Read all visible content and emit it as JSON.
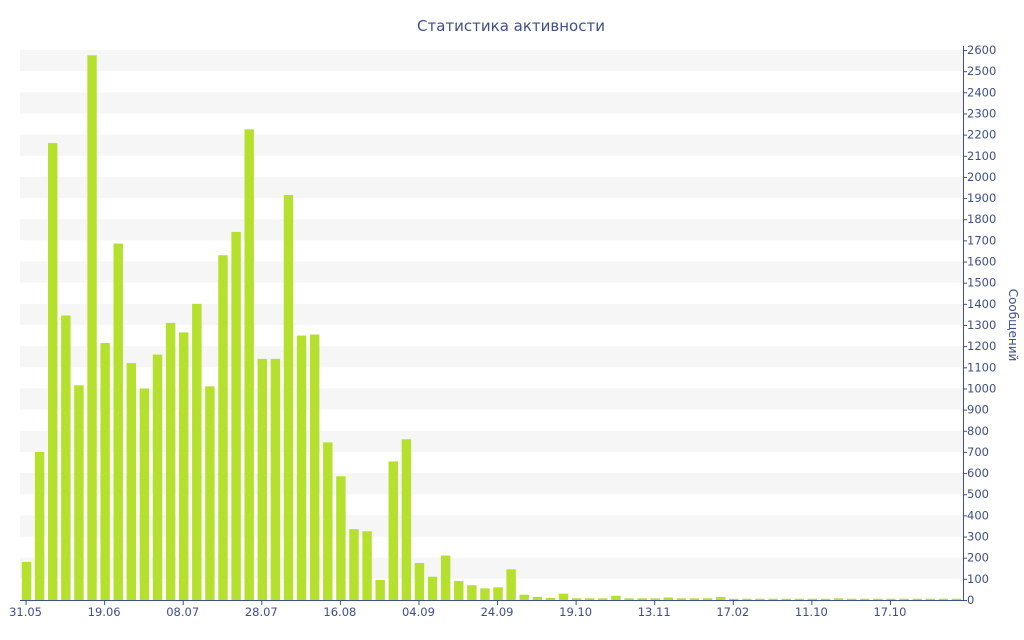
{
  "chart_data": {
    "type": "bar",
    "title": "Статистика активности",
    "xlabel": "",
    "ylabel": "Сообщений",
    "ylim": [
      0,
      2600
    ],
    "ytick_step": 100,
    "y_axis_position": "right",
    "grid": "alternating horizontal bands",
    "bar_color": "#b5e02e",
    "text_color": "#3e4f8a",
    "x_tick_labels": [
      {
        "index": 0,
        "label": "31.05"
      },
      {
        "index": 6,
        "label": "19.06"
      },
      {
        "index": 12,
        "label": "08.07"
      },
      {
        "index": 18,
        "label": "28.07"
      },
      {
        "index": 24,
        "label": "16.08"
      },
      {
        "index": 30,
        "label": "04.09"
      },
      {
        "index": 36,
        "label": "24.09"
      },
      {
        "index": 42,
        "label": "19.10"
      },
      {
        "index": 48,
        "label": "13.11"
      },
      {
        "index": 54,
        "label": "17.02"
      },
      {
        "index": 60,
        "label": "11.10"
      },
      {
        "index": 66,
        "label": "17.10"
      }
    ],
    "values": [
      180,
      700,
      2160,
      1345,
      1015,
      2575,
      1215,
      1685,
      1120,
      1000,
      1160,
      1310,
      1265,
      1400,
      1010,
      1630,
      1740,
      2225,
      1140,
      1140,
      1915,
      1250,
      1255,
      745,
      585,
      335,
      325,
      95,
      655,
      760,
      175,
      110,
      210,
      90,
      70,
      55,
      60,
      145,
      25,
      15,
      10,
      30,
      8,
      8,
      8,
      20,
      8,
      8,
      8,
      12,
      8,
      8,
      8,
      15,
      6,
      6,
      6,
      6,
      6,
      6,
      6,
      6,
      8,
      6,
      6,
      6,
      6,
      6,
      6,
      6,
      6,
      6
    ]
  }
}
